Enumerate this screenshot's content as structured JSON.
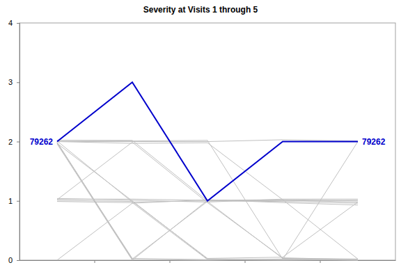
{
  "chart_data": {
    "type": "line",
    "title": "Severity at Visits 1 through 5",
    "categories": [
      null,
      null,
      null,
      null,
      null
    ],
    "ylim": [
      0,
      4
    ],
    "yticks": [
      0,
      1,
      2,
      3,
      4
    ],
    "tick_labels": "y",
    "series": [
      {
        "color": "#c0c0c0",
        "values": [
          2.02,
          2.01,
          2.02,
          0.02,
          0.01
        ]
      },
      {
        "color": "#c0c0c0",
        "values": [
          2.0,
          1.97,
          1.98,
          1.02,
          1.0
        ]
      },
      {
        "color": "#c0c0c0",
        "values": [
          1.98,
          0.01,
          0.0,
          0.02,
          0.0
        ]
      },
      {
        "color": "#c0c0c0",
        "values": [
          1.99,
          0.02,
          0.99,
          0.03,
          0.02
        ]
      },
      {
        "color": "#c0c0c0",
        "values": [
          2.01,
          0.98,
          1.0,
          1.01,
          0.98
        ]
      },
      {
        "color": "#c0c0c0",
        "values": [
          1.97,
          1.0,
          0.02,
          0.01,
          0.0
        ]
      },
      {
        "color": "#c0c0c0",
        "values": [
          1.04,
          1.01,
          0.98,
          1.03,
          1.03
        ]
      },
      {
        "color": "#c0c0c0",
        "values": [
          1.02,
          1.99,
          0.97,
          0.04,
          0.01
        ]
      },
      {
        "color": "#c0c0c0",
        "values": [
          0.99,
          0.97,
          0.01,
          0.0,
          0.01
        ]
      },
      {
        "color": "#c0c0c0",
        "values": [
          0.0,
          0.96,
          1.02,
          0.97,
          0.93
        ]
      },
      {
        "color": "#c0c0c0",
        "values": [
          1.98,
          0.03,
          0.01,
          0.01,
          2.0
        ]
      },
      {
        "color": "#c0c0c0",
        "values": [
          2.02,
          2.02,
          1.0,
          0.99,
          0.96
        ]
      },
      {
        "color": "#c0c0c0",
        "values": [
          1.96,
          0.0,
          1.01,
          1.0,
          1.01
        ]
      },
      {
        "color": "#c0c0c0",
        "values": [
          1.03,
          1.03,
          1.01,
          1.02,
          0.02
        ]
      },
      {
        "color": "#c0c0c0",
        "values": [
          2.0,
          2.0,
          2.0,
          2.03,
          2.01
        ]
      },
      {
        "color": "#c0c0c0",
        "values": [
          1.01,
          0.99,
          0.03,
          0.05,
          0.98
        ]
      },
      {
        "name": "79262",
        "color": "#0000cc",
        "values": [
          2,
          3,
          1,
          2,
          2
        ]
      }
    ]
  }
}
